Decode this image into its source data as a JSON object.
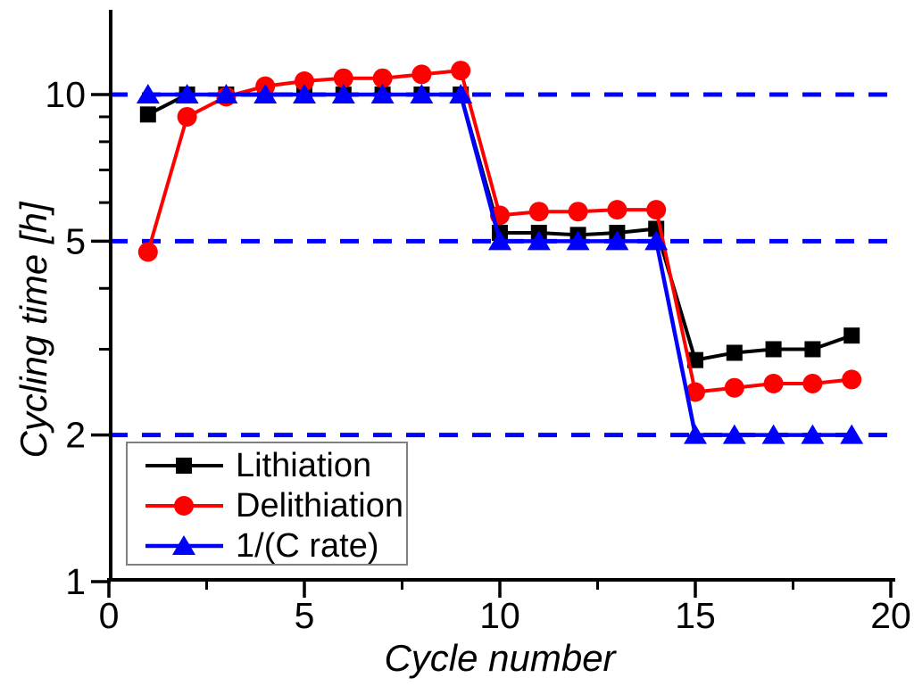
{
  "chart_data": {
    "type": "line",
    "title": "",
    "xlabel": "Cycle number",
    "ylabel": "Cycling time [h]",
    "yscale": "log",
    "xlim": [
      0,
      20
    ],
    "ylim": [
      1,
      14.8
    ],
    "grid": false,
    "legend_position": "lower-left",
    "background": "#ffffff",
    "x": [
      1,
      2,
      3,
      4,
      5,
      6,
      7,
      8,
      9,
      10,
      11,
      12,
      13,
      14,
      15,
      16,
      17,
      18,
      19
    ],
    "series": [
      {
        "name": "Lithiation",
        "color": "#000000",
        "marker": "square",
        "values": [
          9.1,
          10,
          10,
          10,
          10,
          10,
          10,
          10,
          10,
          5.2,
          5.2,
          5.15,
          5.2,
          5.3,
          2.85,
          2.95,
          3.0,
          3.0,
          3.2
        ]
      },
      {
        "name": "Delithiation",
        "color": "#ff0000",
        "marker": "circle",
        "values": [
          4.75,
          9.0,
          9.9,
          10.4,
          10.65,
          10.8,
          10.8,
          11.0,
          11.2,
          5.65,
          5.75,
          5.75,
          5.8,
          5.8,
          2.45,
          2.5,
          2.55,
          2.55,
          2.6
        ]
      },
      {
        "name": "1/(C rate)",
        "color": "#0000ff",
        "marker": "triangle",
        "values": [
          10,
          10,
          10,
          10,
          10,
          10,
          10,
          10,
          10,
          5,
          5,
          5,
          5,
          5,
          2,
          2,
          2,
          2,
          2
        ]
      }
    ],
    "x_major_ticks": [
      0,
      5,
      10,
      15,
      20
    ],
    "x_minor_ticks": [
      2.5,
      7.5,
      12.5,
      17.5
    ],
    "y_major_ticks": [
      10,
      5,
      2,
      1
    ],
    "y_minor_ticks": [
      3,
      4,
      6,
      7,
      8,
      9
    ],
    "reference_lines": {
      "values": [
        10,
        5,
        2
      ],
      "style": "dashed",
      "color": "#0000ff"
    },
    "axis_color": "#000000"
  }
}
